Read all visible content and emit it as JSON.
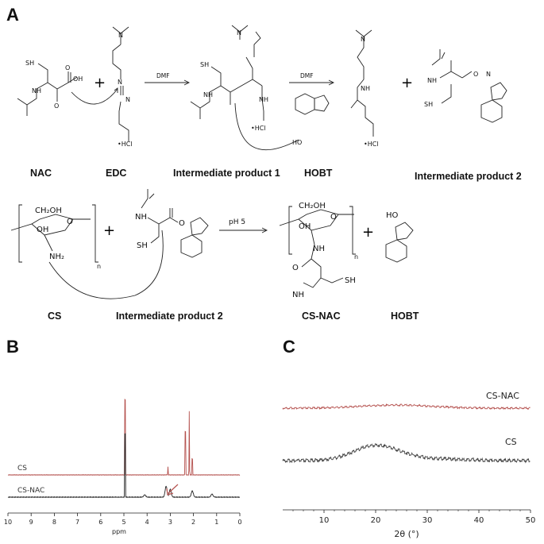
{
  "panels": {
    "a": "A",
    "b": "B",
    "c": "C"
  },
  "scheme": {
    "plus": "+",
    "reaction1": {
      "reagent": "DMF"
    },
    "reaction2": {
      "reagent": "DMF"
    },
    "reaction3": {
      "condition": "pH 5"
    },
    "captions_row1": [
      "NAC",
      "EDC",
      "Intermediate product 1",
      "HOBT",
      "Intermediate product 2"
    ],
    "captions_row2": [
      "CS",
      "Intermediate product 2",
      "CS-NAC",
      "HOBT"
    ],
    "atoms": {
      "SH": "SH",
      "NH": "NH",
      "OH": "OH",
      "O": "O",
      "N": "N",
      "HCl": "•HCl",
      "HO": "HO",
      "CH2OH": "CH₂OH",
      "NH2": "NH₂",
      "n": "n"
    }
  },
  "nmr": {
    "xlabel": "ppm",
    "xticks": [
      "10",
      "9",
      "8",
      "7",
      "6",
      "5",
      "4",
      "3",
      "2",
      "1",
      "0"
    ],
    "series_labels": [
      "CS",
      "CS-NAC"
    ],
    "colors": {
      "CS": "#b5524f",
      "CS-NAC": "#222222"
    }
  },
  "xrd": {
    "xlabel": "2θ (°)",
    "xticks": [
      "10",
      "20",
      "30",
      "40",
      "50"
    ],
    "series_labels": [
      "CS-NAC",
      "CS"
    ],
    "colors": {
      "CS-NAC": "#b5524f",
      "CS": "#444444"
    }
  }
}
